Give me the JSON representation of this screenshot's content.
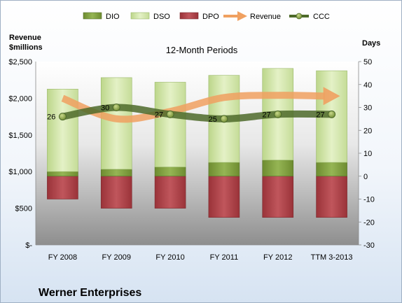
{
  "chart_data": {
    "type": "bar",
    "title": "12-Month Periods",
    "company": "Werner Enterprises",
    "left_axis_label_line1": "Revenue",
    "left_axis_label_line2": "$millions",
    "right_axis_label": "Days",
    "categories": [
      "FY 2008",
      "FY 2009",
      "FY 2010",
      "FY 2011",
      "FY 2012",
      "TTM 3-2013"
    ],
    "left_ticks": [
      "$-",
      "$500",
      "$1,000",
      "$1,500",
      "$2,000",
      "$2,500"
    ],
    "right_ticks": [
      "-30",
      "-20",
      "-10",
      "0",
      "10",
      "20",
      "30",
      "40",
      "50"
    ],
    "ylim_days": [
      -30,
      50
    ],
    "ylim_revenue": [
      0,
      2500
    ],
    "legend": [
      {
        "name": "DIO",
        "type": "bar",
        "color": "#7a9a3a"
      },
      {
        "name": "DSO",
        "type": "bar",
        "color": "#cfe3a4"
      },
      {
        "name": "DPO",
        "type": "bar",
        "color": "#b0444a"
      },
      {
        "name": "Revenue",
        "type": "arrow",
        "color": "#f0a060"
      },
      {
        "name": "CCC",
        "type": "line",
        "color": "#4d6a2a"
      }
    ],
    "series": [
      {
        "name": "DIO",
        "values": [
          2,
          3,
          4,
          6,
          7,
          6
        ]
      },
      {
        "name": "DSO",
        "values": [
          36,
          40,
          37,
          38,
          40,
          40
        ]
      },
      {
        "name": "DPO",
        "values": [
          -10,
          -14,
          -14,
          -18,
          -18,
          -18
        ]
      },
      {
        "name": "Revenue",
        "values": [
          2000,
          1720,
          1820,
          2010,
          2040,
          2030
        ]
      },
      {
        "name": "CCC",
        "values": [
          26,
          30,
          27,
          25,
          27,
          27
        ]
      }
    ],
    "data_labels": [
      "26",
      "30",
      "27",
      "25",
      "27",
      "27"
    ],
    "grid": false,
    "legend_placement": "top"
  }
}
